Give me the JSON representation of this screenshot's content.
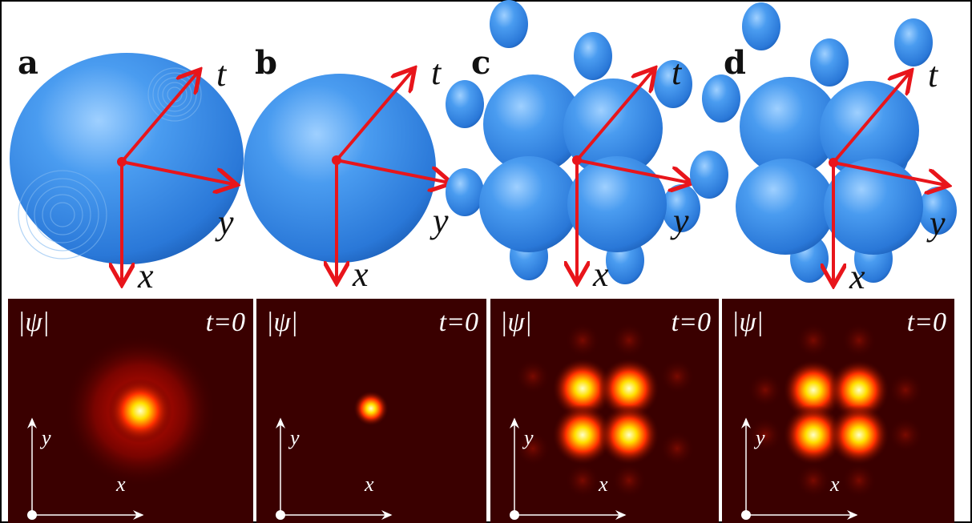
{
  "panels": [
    {
      "label": "a",
      "axes": {
        "t": "t",
        "y": "y",
        "x": "x"
      },
      "map": {
        "field": "|ψ|",
        "time": "t=0",
        "y": "y",
        "x": "x"
      }
    },
    {
      "label": "b",
      "axes": {
        "t": "t",
        "y": "y",
        "x": "x"
      },
      "map": {
        "field": "|ψ|",
        "time": "t=0",
        "y": "y",
        "x": "x"
      }
    },
    {
      "label": "c",
      "axes": {
        "t": "t",
        "y": "y",
        "x": "x"
      },
      "map": {
        "field": "|ψ|",
        "time": "t=0",
        "y": "y",
        "x": "x"
      }
    },
    {
      "label": "d",
      "axes": {
        "t": "t",
        "y": "y",
        "x": "x"
      },
      "map": {
        "field": "|ψ|",
        "time": "t=0",
        "y": "y",
        "x": "x"
      }
    }
  ]
}
